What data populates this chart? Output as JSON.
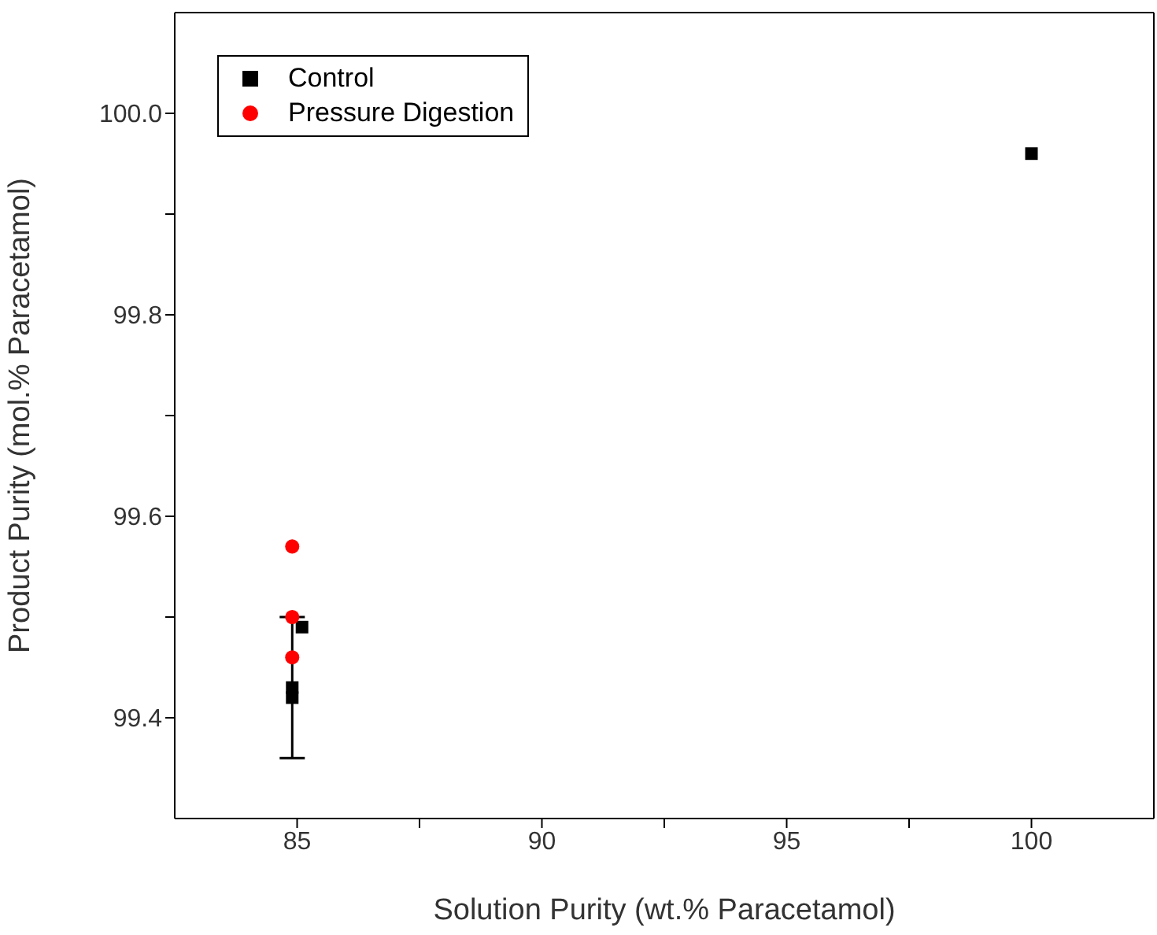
{
  "chart_data": {
    "type": "scatter",
    "xlabel": "Solution Purity (wt.% Paracetamol)",
    "ylabel": "Product Purity (mol.% Paracetamol)",
    "xlim": [
      82.5,
      102.5
    ],
    "ylim": [
      99.3,
      100.1
    ],
    "xticks": [
      85,
      {
        "value": 87.5,
        "label": null
      },
      90,
      {
        "value": 92.5,
        "label": null
      },
      95,
      {
        "value": 97.5,
        "label": null
      },
      100
    ],
    "yticks": [
      99.4,
      {
        "value": 99.5,
        "label": null
      },
      99.6,
      {
        "value": 99.7,
        "label": null
      },
      99.8,
      {
        "value": 99.9,
        "label": null
      },
      {
        "value": 100.0,
        "label": "100.0"
      }
    ],
    "grid": false,
    "legend": "top left",
    "series": [
      {
        "name": "Control",
        "color": "#000000",
        "marker": "square",
        "x": [
          84.9,
          84.9,
          85.1,
          100
        ],
        "values": [
          99.43,
          99.42,
          99.49,
          99.96
        ],
        "errors": [
          0.07,
          null,
          null,
          null
        ]
      },
      {
        "name": "Pressure Digestion",
        "color": "#ff0000",
        "marker": "circle",
        "x": [
          84.9,
          84.9,
          84.9
        ],
        "values": [
          99.57,
          99.5,
          99.46
        ]
      }
    ]
  }
}
